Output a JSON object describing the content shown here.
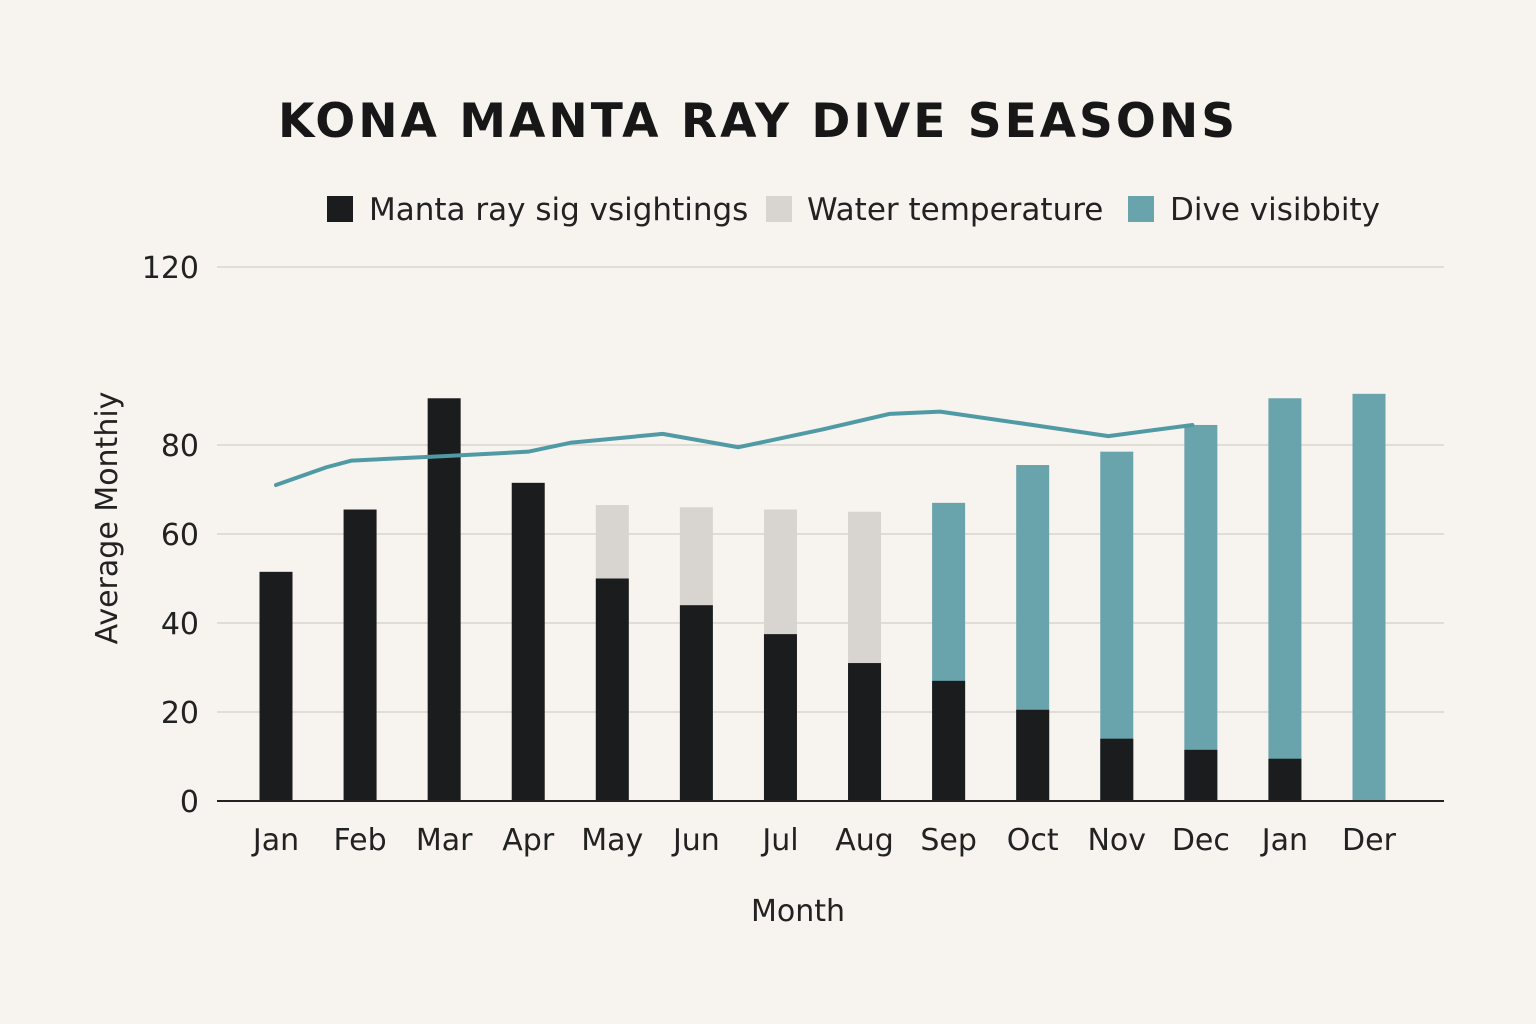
{
  "colors": {
    "background": "#f7f3ee",
    "sightings": "#1b1c1d",
    "temperature": "#d8d4d0",
    "visibility": "#69a3ab",
    "line": "#4f9aa5",
    "grid": "#d9d6d1",
    "axis": "#222222"
  },
  "chart_data": {
    "type": "bar",
    "title": "KONA MANTA RAY DIVE SEASONS",
    "xlabel": "Month",
    "ylabel": "Average Monthiy",
    "ylim": [
      0,
      120
    ],
    "yticks": [
      0,
      20,
      40,
      60,
      80,
      120
    ],
    "gridlines": [
      20,
      40,
      60,
      80,
      120
    ],
    "grid": true,
    "legend_position": "top",
    "categories": [
      "Jan",
      "Feb",
      "Mar",
      "Apr",
      "May",
      "Jun",
      "Jul",
      "Aug",
      "Sep",
      "Oct",
      "Nov",
      "Dec",
      "Jan",
      "Der"
    ],
    "series": [
      {
        "name": "Manta ray sig vsightings",
        "kind": "bar",
        "color_key": "sightings",
        "values": [
          51.5,
          65.5,
          90.5,
          71.5,
          50,
          44,
          37.5,
          31,
          27,
          20.5,
          14,
          11.5,
          9.5,
          null
        ]
      },
      {
        "name": "Water temperature",
        "kind": "bar",
        "color_key": "temperature",
        "values": [
          null,
          null,
          null,
          null,
          66.5,
          66,
          65.5,
          65,
          null,
          null,
          null,
          null,
          null,
          null
        ]
      },
      {
        "name": "Dive visibbity",
        "kind": "bar",
        "color_key": "visibility",
        "values": [
          null,
          null,
          null,
          null,
          null,
          null,
          null,
          null,
          67,
          75.5,
          78.5,
          84.5,
          90.5,
          91.5
        ]
      }
    ],
    "line": {
      "color_key": "line",
      "points": [
        {
          "x": 0,
          "y": 71
        },
        {
          "x": 0.6,
          "y": 75
        },
        {
          "x": 0.9,
          "y": 76.5
        },
        {
          "x": 2.0,
          "y": 77.5
        },
        {
          "x": 3.0,
          "y": 78.5
        },
        {
          "x": 3.5,
          "y": 80.5
        },
        {
          "x": 4.6,
          "y": 82.5
        },
        {
          "x": 5.5,
          "y": 79.5
        },
        {
          "x": 6.5,
          "y": 83.5
        },
        {
          "x": 7.3,
          "y": 87
        },
        {
          "x": 7.9,
          "y": 87.5
        },
        {
          "x": 9.0,
          "y": 84.5
        },
        {
          "x": 9.9,
          "y": 82
        },
        {
          "x": 10.9,
          "y": 84.5
        }
      ]
    }
  }
}
